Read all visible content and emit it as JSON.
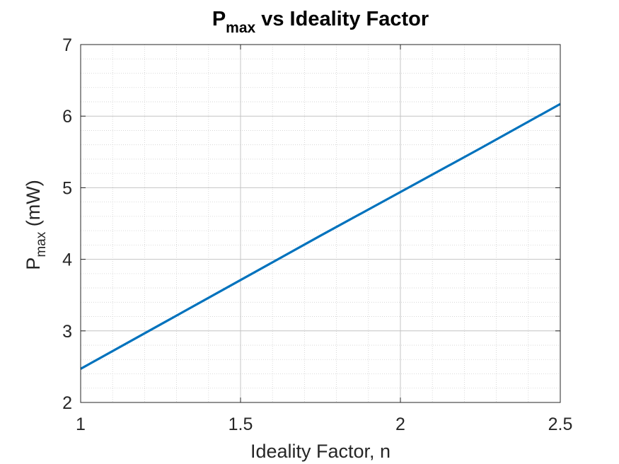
{
  "chart_data": {
    "type": "line",
    "title": {
      "main": "P",
      "sub": "max",
      "rest": " vs Ideality Factor"
    },
    "xlabel": "Ideality Factor, n",
    "ylabel": {
      "main": "P",
      "sub": "max",
      "rest": " (mW)"
    },
    "xlim": [
      1,
      2.5
    ],
    "ylim": [
      2,
      7
    ],
    "xticks": [
      1,
      1.5,
      2,
      2.5
    ],
    "xtick_labels": [
      "1",
      "1.5",
      "2",
      "2.5"
    ],
    "yticks": [
      2,
      3,
      4,
      5,
      6,
      7
    ],
    "ytick_labels": [
      "2",
      "3",
      "4",
      "5",
      "6",
      "7"
    ],
    "grid": true,
    "minor_grid": true,
    "series": [
      {
        "color": "#0072BD",
        "x": [
          1.0,
          1.25,
          1.5,
          1.75,
          2.0,
          2.25,
          2.5
        ],
        "y": [
          2.47,
          3.09,
          3.71,
          4.33,
          4.94,
          5.55,
          6.17
        ]
      }
    ]
  }
}
